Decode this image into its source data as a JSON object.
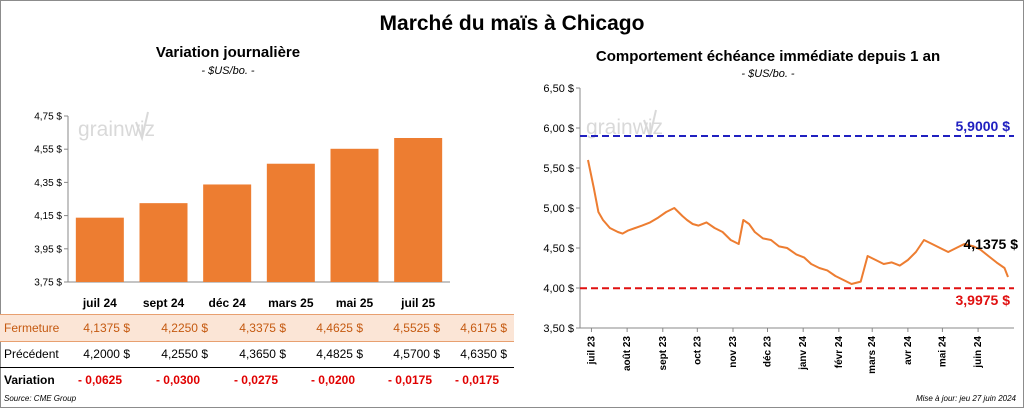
{
  "title": "Marché du maïs à Chicago",
  "left_chart": {
    "title": "Variation  journalière",
    "unit": "- $US/bo. -"
  },
  "right_chart": {
    "title": "Comportement  échéance immédiate  depuis 1 an",
    "unit": "- $US/bo. -"
  },
  "watermark": "grainwiz",
  "table": {
    "rows": [
      {
        "label": "Fermeture",
        "values": [
          "4,1375  $",
          "4,2250  $",
          "4,3375  $",
          "4,4625  $",
          "4,5525  $",
          "4,6175  $"
        ]
      },
      {
        "label": "Précédent",
        "values": [
          "4,2000  $",
          "4,2550  $",
          "4,3650  $",
          "4,4825  $",
          "4,5700  $",
          "4,6350  $"
        ]
      },
      {
        "label": "Variation",
        "values": [
          "- 0,0625",
          "- 0,0300",
          "- 0,0275",
          "- 0,0200",
          "- 0,0175",
          "- 0,0175"
        ]
      }
    ]
  },
  "source": "Source: CME Group",
  "updated": "Mise à jour: jeu 27 juin 2024",
  "colors": {
    "bar": "#ed7d31",
    "line": "#ed7d31",
    "high": "#2020c0",
    "low": "#e01010"
  },
  "chart_data": [
    {
      "type": "bar",
      "categories": [
        "juil 24",
        "sept 24",
        "déc 24",
        "mars 25",
        "mai 25",
        "juil 25"
      ],
      "values": [
        4.1375,
        4.225,
        4.3375,
        4.4625,
        4.5525,
        4.6175
      ],
      "ylim": [
        3.75,
        4.75
      ],
      "yticks": [
        "3,75 $",
        "3,95 $",
        "4,15 $",
        "4,35 $",
        "4,55 $",
        "4,75 $"
      ],
      "ytick_values": [
        3.75,
        3.95,
        4.15,
        4.35,
        4.55,
        4.75
      ]
    },
    {
      "type": "line",
      "ylim": [
        3.5,
        6.5
      ],
      "yticks": [
        "3,50 $",
        "4,00 $",
        "4,50 $",
        "5,00 $",
        "5,50 $",
        "6,00 $",
        "6,50 $"
      ],
      "ytick_values": [
        3.5,
        4.0,
        4.5,
        5.0,
        5.5,
        6.0,
        6.5
      ],
      "x_ticks": [
        "juil 23",
        "août 23",
        "sept 23",
        "oct 23",
        "nov 23",
        "déc 23",
        "janv 24",
        "févr 24",
        "mars 24",
        "avr 24",
        "mai 24",
        "juin 24"
      ],
      "x_tick_dates": [
        "2023-07-01",
        "2023-08-01",
        "2023-09-01",
        "2023-10-01",
        "2023-11-01",
        "2023-12-01",
        "2024-01-01",
        "2024-02-01",
        "2024-03-01",
        "2024-04-01",
        "2024-05-01",
        "2024-06-01"
      ],
      "series": [
        {
          "x": [
            "2023-06-28",
            "2023-07-03",
            "2023-07-07",
            "2023-07-11",
            "2023-07-17",
            "2023-07-24",
            "2023-07-28",
            "2023-08-02",
            "2023-08-08",
            "2023-08-14",
            "2023-08-21",
            "2023-08-28",
            "2023-09-04",
            "2023-09-11",
            "2023-09-18",
            "2023-09-22",
            "2023-09-27",
            "2023-10-02",
            "2023-10-09",
            "2023-10-16",
            "2023-10-23",
            "2023-10-30",
            "2023-11-06",
            "2023-11-10",
            "2023-11-15",
            "2023-11-20",
            "2023-11-27",
            "2023-12-04",
            "2023-12-11",
            "2023-12-18",
            "2023-12-26",
            "2024-01-02",
            "2024-01-08",
            "2024-01-15",
            "2024-01-22",
            "2024-01-29",
            "2024-02-05",
            "2024-02-12",
            "2024-02-20",
            "2024-02-26",
            "2024-03-04",
            "2024-03-11",
            "2024-03-18",
            "2024-03-25",
            "2024-04-01",
            "2024-04-08",
            "2024-04-15",
            "2024-04-22",
            "2024-04-29",
            "2024-05-06",
            "2024-05-13",
            "2024-05-20",
            "2024-05-28",
            "2024-06-03",
            "2024-06-10",
            "2024-06-17",
            "2024-06-24",
            "2024-06-27"
          ],
          "y": [
            5.6,
            5.25,
            4.95,
            4.85,
            4.75,
            4.7,
            4.68,
            4.72,
            4.75,
            4.78,
            4.82,
            4.88,
            4.95,
            5.0,
            4.9,
            4.85,
            4.8,
            4.78,
            4.82,
            4.75,
            4.7,
            4.6,
            4.55,
            4.85,
            4.8,
            4.7,
            4.62,
            4.6,
            4.52,
            4.5,
            4.42,
            4.38,
            4.3,
            4.25,
            4.22,
            4.15,
            4.1,
            4.05,
            4.08,
            4.4,
            4.35,
            4.3,
            4.32,
            4.28,
            4.35,
            4.45,
            4.6,
            4.55,
            4.5,
            4.45,
            4.5,
            4.55,
            4.52,
            4.48,
            4.4,
            4.32,
            4.25,
            4.1375
          ]
        }
      ],
      "hlines": [
        {
          "value": 5.9,
          "label": "5,9000 $",
          "color": "#2020c0"
        },
        {
          "value": 3.9975,
          "label": "3,9975 $",
          "color": "#e01010"
        }
      ],
      "last_label": "4,1375 $"
    }
  ]
}
